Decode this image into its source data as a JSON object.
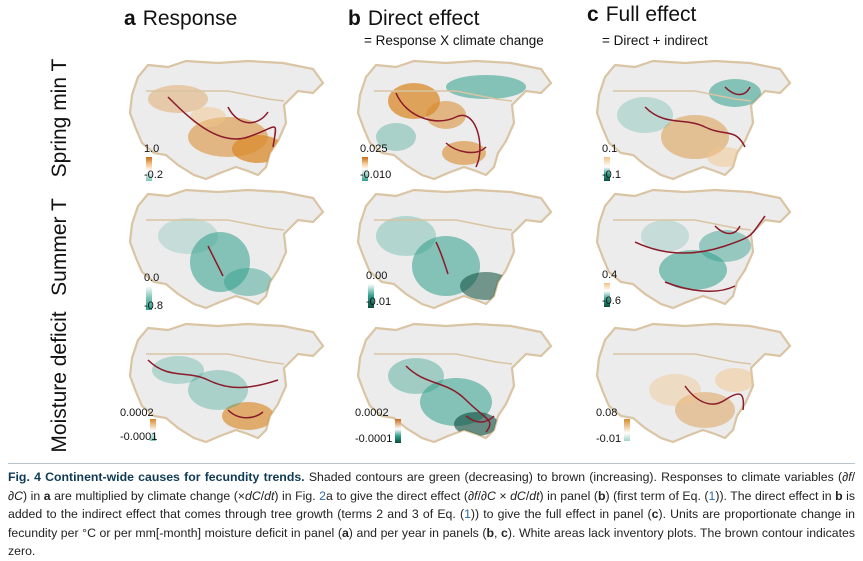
{
  "columns": [
    {
      "letter": "a",
      "title": "Response",
      "subtitle": ""
    },
    {
      "letter": "b",
      "title": "Direct effect",
      "subtitle": "= Response X climate change"
    },
    {
      "letter": "c",
      "title": "Full effect",
      "subtitle": "= Direct + indirect"
    }
  ],
  "rows": [
    {
      "label": "Spring min T",
      "legends": [
        {
          "hi": "1.0",
          "lo": "-0.2"
        },
        {
          "hi": "0.025",
          "lo": "-0.010"
        },
        {
          "hi": "0.1",
          "lo": "-0.1"
        }
      ]
    },
    {
      "label": "Summer T",
      "legends": [
        {
          "hi": "0.0",
          "lo": "-0.8"
        },
        {
          "hi": "0.00",
          "lo": "-0.01"
        },
        {
          "hi": "0.4",
          "lo": "-0.6"
        }
      ]
    },
    {
      "label": "Moisture deficit",
      "legends": [
        {
          "hi": "0.0002",
          "lo": "-0.0001"
        },
        {
          "hi": "0.0002",
          "lo": "-0.0001"
        },
        {
          "hi": "0.08",
          "lo": "-0.01"
        }
      ]
    }
  ],
  "colors": {
    "brown": "#d98a2b",
    "green": "#2f9e8a",
    "contour": "#8b1a2a",
    "border": "#d9c4a3"
  },
  "caption": {
    "lead": "Fig. 4 Continent-wide causes for fecundity trends.",
    "s1": " Shaded contours are green (decreasing) to brown (increasing). Responses to climate variables (∂",
    "s2": "f",
    "s3": "/∂",
    "s4": "C",
    "s5": ") in ",
    "s6": "a",
    "s7": " are multiplied by climate change (×",
    "s8": "dC",
    "s9": "/",
    "s10": "dt",
    "s11": ") in Fig. ",
    "s12": "2",
    "s13": "a to give the direct effect (∂",
    "s14": "f",
    "s15": "/∂",
    "s16": "C",
    "s17": " × ",
    "s18": "dC",
    "s19": "/",
    "s20": "dt",
    "s21": ") in panel (",
    "s22": "b",
    "s23": ") (first term of Eq. (",
    "s24": "1",
    "s25": ")). The direct effect in ",
    "s26": "b",
    "s27": " is added to the indirect effect that comes through tree growth (terms 2 and 3 of Eq. (",
    "s28": "1",
    "s29": ")) to give the full effect in panel (",
    "s30": "c",
    "s31": "). Units are proportionate change in fecundity per °C or per mm[-month] moisture deficit in panel (",
    "s32": "a",
    "s33": ") and per year in panels (",
    "s34": "b",
    "s35": ", ",
    "s36": "c",
    "s37": "). White areas lack inventory plots. The brown contour indicates zero."
  }
}
